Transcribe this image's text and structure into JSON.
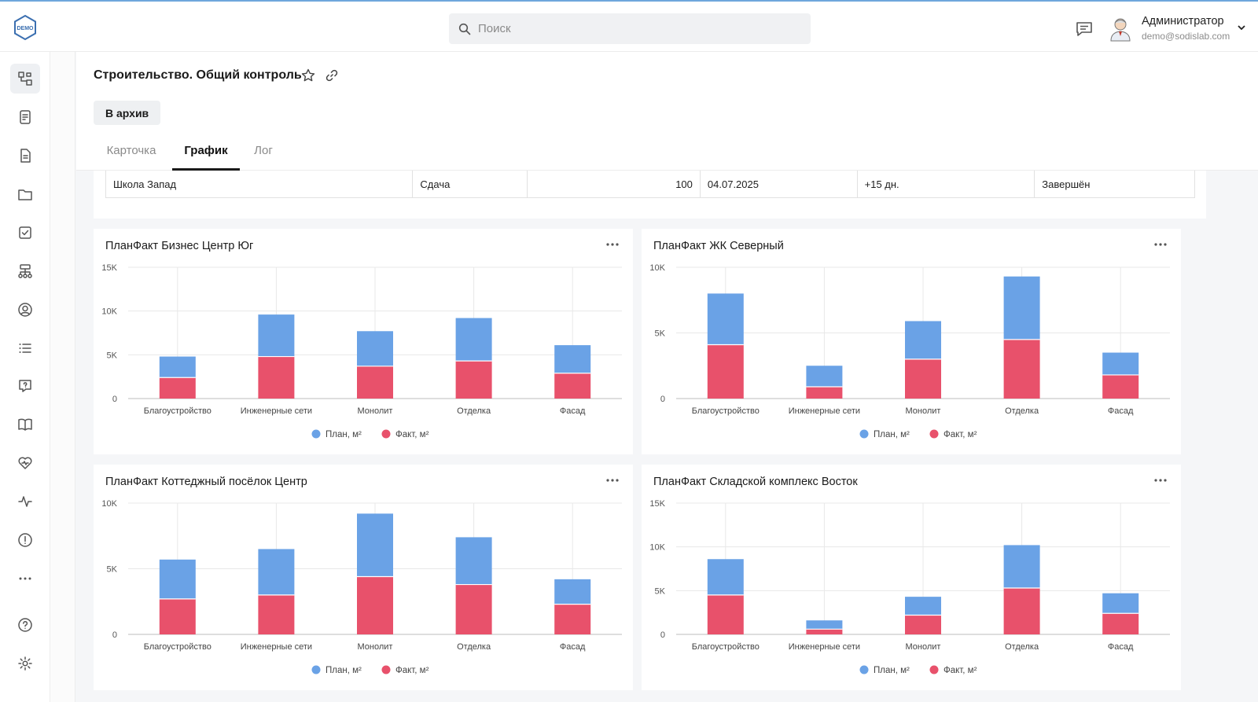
{
  "header": {
    "logo_text": "DEMO",
    "search_placeholder": "Поиск",
    "user_name": "Администратор",
    "user_email": "demo@sodislab.com"
  },
  "sidebar": {
    "items": [
      "diagram-icon",
      "report-icon",
      "document-icon",
      "folder-icon",
      "check-square-icon",
      "hierarchy-icon",
      "user-circle-icon",
      "list-icon",
      "help-message-icon",
      "book-icon",
      "heart-icon",
      "pulse-icon",
      "alert-icon",
      "more-icon",
      "help-icon",
      "gear-icon"
    ],
    "active_index": 0
  },
  "page": {
    "title": "Строительство. Общий контроль",
    "archive_label": "В архив",
    "tabs": [
      {
        "label": "Карточка",
        "active": false
      },
      {
        "label": "График",
        "active": true
      },
      {
        "label": "Лог",
        "active": false
      }
    ]
  },
  "table": {
    "row": [
      "Школа Запад",
      "Сдача",
      "100",
      "04.07.2025",
      "+15 дн.",
      "Завершён"
    ]
  },
  "colors": {
    "plan": "#6aa2e6",
    "fact": "#e8516b",
    "accent": "#1a1a1a"
  },
  "legend": {
    "plan": "План, м²",
    "fact": "Факт, м²"
  },
  "chart_data": [
    {
      "type": "bar",
      "title": "ПланФакт Бизнес Центр Юг",
      "categories": [
        "Благоустройство",
        "Инженерные сети",
        "Монолит",
        "Отделка",
        "Фасад"
      ],
      "series": [
        {
          "name": "План, м²",
          "values": [
            2400,
            4800,
            4000,
            4900,
            3200
          ]
        },
        {
          "name": "Факт, м²",
          "values": [
            2400,
            4800,
            3700,
            4300,
            2900
          ]
        }
      ],
      "stacked": true,
      "ylim": [
        0,
        15000
      ],
      "yticks": [
        "0",
        "5K",
        "10K",
        "15K"
      ],
      "ytick_values": [
        0,
        5000,
        10000,
        15000
      ]
    },
    {
      "type": "bar",
      "title": "ПланФакт ЖК Северный",
      "categories": [
        "Благоустройство",
        "Инженерные сети",
        "Монолит",
        "Отделка",
        "Фасад"
      ],
      "series": [
        {
          "name": "План, м²",
          "values": [
            3900,
            1600,
            2900,
            4800,
            1700
          ]
        },
        {
          "name": "Факт, м²",
          "values": [
            4100,
            900,
            3000,
            4500,
            1800
          ]
        }
      ],
      "stacked": true,
      "ylim": [
        0,
        10000
      ],
      "yticks": [
        "0",
        "5K",
        "10K"
      ],
      "ytick_values": [
        0,
        5000,
        10000
      ]
    },
    {
      "type": "bar",
      "title": "ПланФакт Коттеджный посёлок Центр",
      "categories": [
        "Благоустройство",
        "Инженерные сети",
        "Монолит",
        "Отделка",
        "Фасад"
      ],
      "series": [
        {
          "name": "План, м²",
          "values": [
            3000,
            3500,
            4800,
            3600,
            1900
          ]
        },
        {
          "name": "Факт, м²",
          "values": [
            2700,
            3000,
            4400,
            3800,
            2300
          ]
        }
      ],
      "stacked": true,
      "ylim": [
        0,
        10000
      ],
      "yticks": [
        "0",
        "5K",
        "10K"
      ],
      "ytick_values": [
        0,
        5000,
        10000
      ]
    },
    {
      "type": "bar",
      "title": "ПланФакт Складской комплекс Восток",
      "categories": [
        "Благоустройство",
        "Инженерные сети",
        "Монолит",
        "Отделка",
        "Фасад"
      ],
      "series": [
        {
          "name": "План, м²",
          "values": [
            4100,
            1000,
            2100,
            4900,
            2300
          ]
        },
        {
          "name": "Факт, м²",
          "values": [
            4500,
            600,
            2200,
            5300,
            2400
          ]
        }
      ],
      "stacked": true,
      "ylim": [
        0,
        15000
      ],
      "yticks": [
        "0",
        "5K",
        "10K",
        "15K"
      ],
      "ytick_values": [
        0,
        5000,
        10000,
        15000
      ]
    }
  ]
}
